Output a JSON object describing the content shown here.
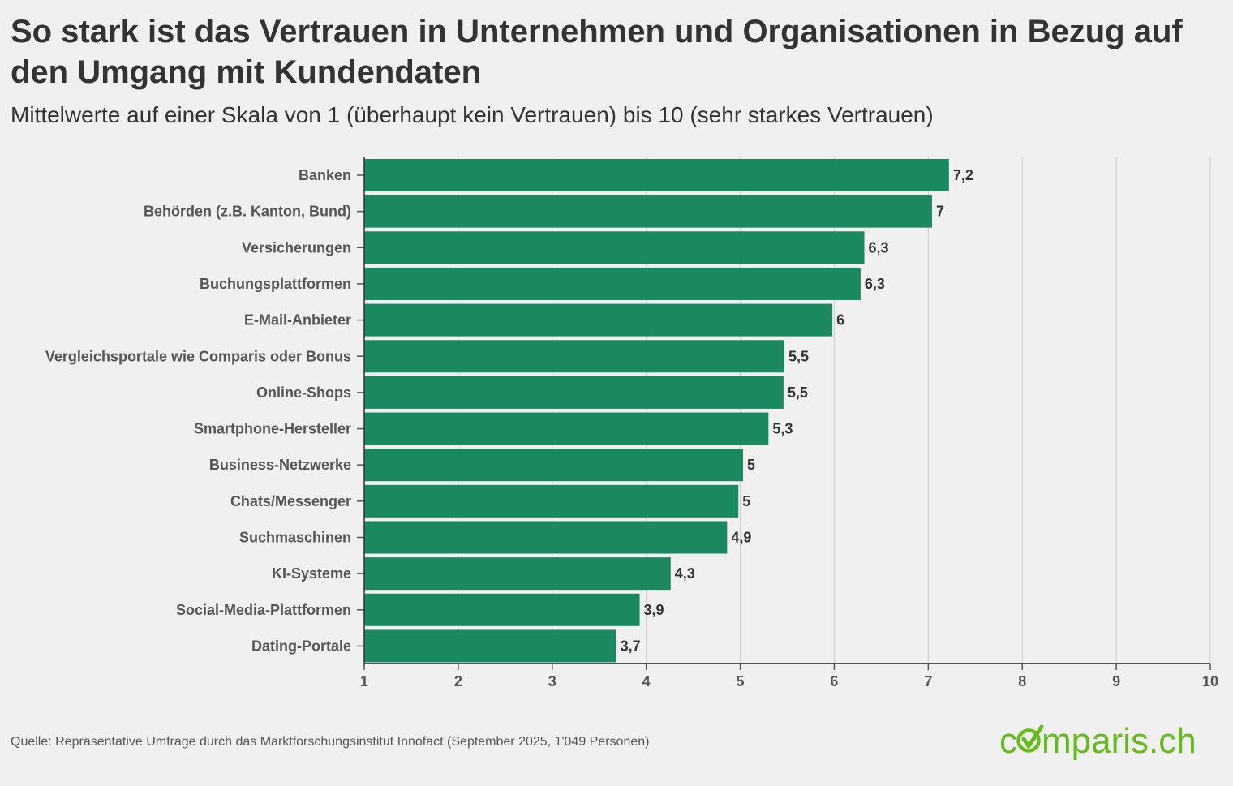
{
  "title": "So stark ist das Vertrauen in Unternehmen und Organisationen in Bezug auf den Umgang mit Kundendaten",
  "subtitle": "Mittelwerte auf einer Skala von 1 (überhaupt kein Vertrauen) bis 10 (sehr starkes Vertrauen)",
  "source": "Quelle: Repräsentative Umfrage durch das Marktforschungsinstitut Innofact (September 2025, 1'049 Personen)",
  "logo": {
    "text_before": "c",
    "text_after": "mparis.ch",
    "color": "#66bb1c"
  },
  "colors": {
    "bar": "#1a8960",
    "grid": "#cccccc",
    "axis": "#555555",
    "label": "#555555",
    "value": "#333333"
  },
  "chart_data": {
    "type": "bar",
    "orientation": "horizontal",
    "categories": [
      "Banken",
      "Behörden (z.B. Kanton, Bund)",
      "Versicherungen",
      "Buchungsplattformen",
      "E-Mail-Anbieter",
      "Vergleichsportale wie Comparis oder Bonus",
      "Online-Shops",
      "Smartphone-Hersteller",
      "Business-Netzwerke",
      "Chats/Messenger",
      "Suchmaschinen",
      "KI-Systeme",
      "Social-Media-Plattformen",
      "Dating-Portale"
    ],
    "values": [
      7.22,
      7.04,
      6.32,
      6.28,
      5.98,
      5.47,
      5.46,
      5.3,
      5.03,
      4.98,
      4.86,
      4.26,
      3.93,
      3.68
    ],
    "value_labels": [
      "7,2",
      "7",
      "6,3",
      "6,3",
      "6",
      "5,5",
      "5,5",
      "5,3",
      "5",
      "5",
      "4,9",
      "4,3",
      "3,9",
      "3,7"
    ],
    "xlim": [
      1,
      10
    ],
    "xticks": [
      "1",
      "2",
      "3",
      "4",
      "5",
      "6",
      "7",
      "8",
      "9",
      "10"
    ],
    "grid": true,
    "xlabel": "",
    "ylabel": ""
  }
}
